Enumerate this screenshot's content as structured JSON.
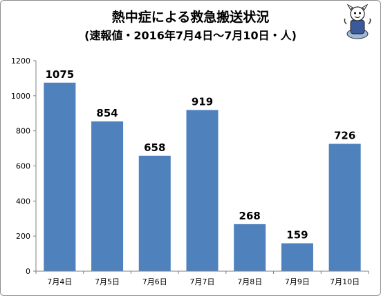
{
  "chart_data": {
    "type": "bar",
    "title": "熱中症による救急搬送状況",
    "subtitle": "(速報値・2016年7月4日〜7月10日・人)",
    "categories": [
      "7月4日",
      "7月5日",
      "7月6日",
      "7月7日",
      "7月8日",
      "7月9日",
      "7月10日"
    ],
    "values": [
      1075,
      854,
      658,
      919,
      268,
      159,
      726
    ],
    "data_labels": [
      "1075",
      "854",
      "658",
      "919",
      "268",
      "159",
      "726"
    ],
    "y_ticks": [
      "0",
      "200",
      "400",
      "600",
      "800",
      "1000",
      "1200"
    ],
    "ylim": [
      0,
      1200
    ],
    "xlabel": "",
    "ylabel": "",
    "grid": false,
    "legend": false,
    "bar_color": "#4f81bd"
  }
}
